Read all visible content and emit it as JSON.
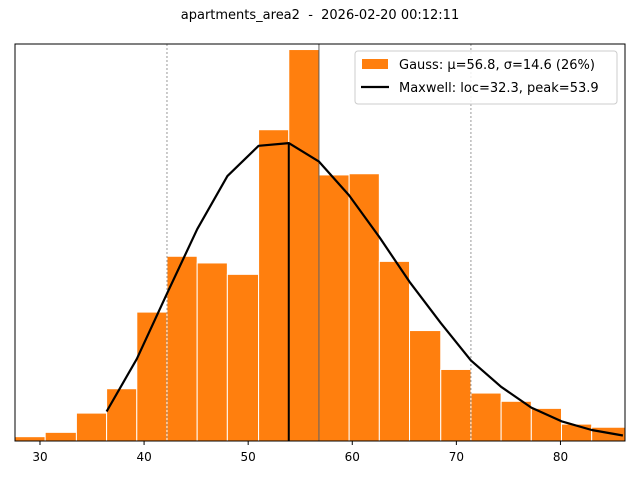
{
  "chart_data": {
    "type": "bar",
    "title": "apartments_area2  -  2026-02-20 00:12:11",
    "xlabel": "",
    "ylabel": "",
    "xlim": [
      27.6,
      86.2
    ],
    "ylim": [
      0,
      1.0
    ],
    "x_ticks": [
      30,
      40,
      50,
      60,
      70,
      80
    ],
    "grid": false,
    "legend_position": "top-right",
    "colors": {
      "bars": "#ff7f0e",
      "bar_edge": "#ffffff",
      "curve": "#000000",
      "guides": "#808080"
    },
    "histogram": {
      "name": "Gauss: μ=56.8, σ=14.6 (26%)",
      "bin_edges": [
        27.6,
        30.5,
        33.5,
        36.4,
        39.3,
        42.2,
        45.1,
        48.0,
        51.0,
        53.9,
        56.8,
        59.7,
        62.6,
        65.5,
        68.5,
        71.4,
        74.3,
        77.2,
        80.1,
        83.0,
        86.2
      ],
      "values": [
        0.011,
        0.022,
        0.071,
        0.133,
        0.328,
        0.47,
        0.453,
        0.424,
        0.792,
        0.996,
        0.677,
        0.68,
        0.457,
        0.281,
        0.182,
        0.122,
        0.101,
        0.083,
        0.043,
        0.035
      ]
    },
    "curve": {
      "name": "Maxwell: loc=32.3, peak=53.9",
      "x": [
        36.4,
        39.3,
        42.2,
        45.1,
        48.0,
        51.0,
        53.9,
        56.8,
        59.7,
        62.6,
        65.5,
        68.5,
        71.4,
        74.3,
        77.2,
        80.1,
        83.0,
        86.0
      ],
      "y": [
        0.075,
        0.209,
        0.375,
        0.539,
        0.674,
        0.751,
        0.758,
        0.711,
        0.625,
        0.519,
        0.405,
        0.3,
        0.205,
        0.138,
        0.085,
        0.05,
        0.028,
        0.014
      ]
    },
    "vertical_lines": [
      {
        "x": 42.2,
        "style": "dashed"
      },
      {
        "x": 56.8,
        "style": "solid"
      },
      {
        "x": 71.4,
        "style": "dashed"
      }
    ],
    "peak_marker": {
      "x": 53.9,
      "y": 0.758
    }
  }
}
